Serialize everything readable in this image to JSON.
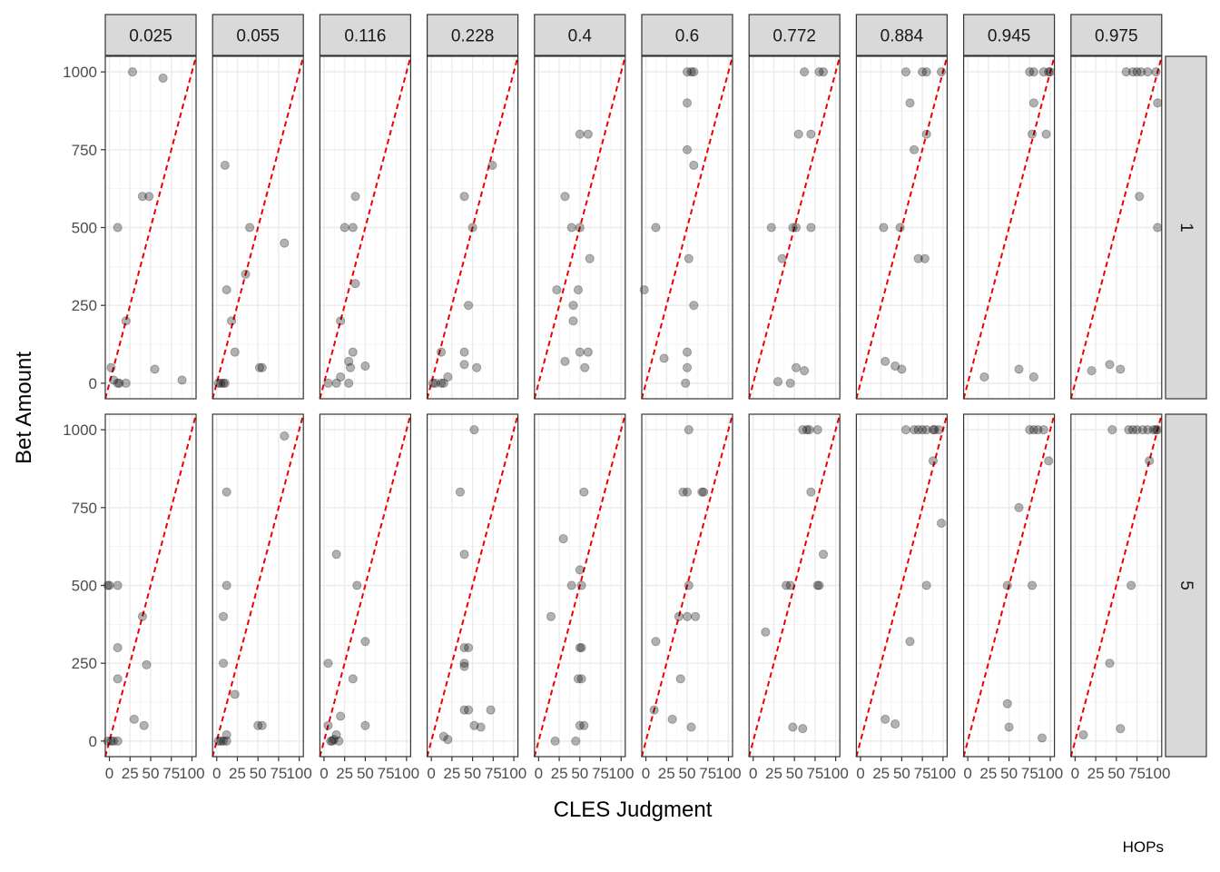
{
  "chart_data": {
    "type": "scatter",
    "xlabel": "CLES Judgment",
    "ylabel": "Bet Amount",
    "caption": "HOPs",
    "xlim": [
      -5,
      105
    ],
    "ylim": [
      -50,
      1050
    ],
    "x_ticks": [
      0,
      25,
      50,
      75,
      100
    ],
    "x_tick_labels": [
      "0",
      "25",
      "50",
      "75",
      "100"
    ],
    "y_ticks": [
      0,
      250,
      500,
      750,
      1000
    ],
    "y_tick_labels": [
      "0",
      "250",
      "500",
      "750",
      "1000"
    ],
    "col_labels": [
      "0.025",
      "0.055",
      "0.116",
      "0.228",
      "0.4",
      "0.6",
      "0.772",
      "0.884",
      "0.945",
      "0.975"
    ],
    "row_labels": [
      "1",
      "5"
    ],
    "reference_line": {
      "style": "dashed",
      "color": "#ee0000",
      "slope": 10,
      "intercept": 0
    },
    "point_color": "#000000",
    "point_opacity": 0.3,
    "grid": true,
    "panels": [
      {
        "row": "1",
        "col": "0.025",
        "points": [
          [
            28,
            1000
          ],
          [
            65,
            980
          ],
          [
            40,
            600
          ],
          [
            48,
            600
          ],
          [
            10,
            500
          ],
          [
            20,
            200
          ],
          [
            55,
            45
          ],
          [
            2,
            50
          ],
          [
            5,
            10
          ],
          [
            10,
            0
          ],
          [
            12,
            0
          ],
          [
            20,
            0
          ],
          [
            88,
            10
          ]
        ]
      },
      {
        "row": "1",
        "col": "0.055",
        "points": [
          [
            10,
            700
          ],
          [
            40,
            500
          ],
          [
            35,
            350
          ],
          [
            82,
            450
          ],
          [
            12,
            300
          ],
          [
            18,
            200
          ],
          [
            22,
            100
          ],
          [
            52,
            50
          ],
          [
            55,
            50
          ],
          [
            2,
            0
          ],
          [
            5,
            0
          ],
          [
            8,
            0
          ],
          [
            10,
            0
          ]
        ]
      },
      {
        "row": "1",
        "col": "0.116",
        "points": [
          [
            38,
            600
          ],
          [
            25,
            500
          ],
          [
            35,
            500
          ],
          [
            38,
            320
          ],
          [
            20,
            200
          ],
          [
            35,
            100
          ],
          [
            30,
            70
          ],
          [
            32,
            50
          ],
          [
            50,
            55
          ],
          [
            5,
            0
          ],
          [
            15,
            0
          ],
          [
            20,
            20
          ],
          [
            30,
            0
          ]
        ]
      },
      {
        "row": "1",
        "col": "0.228",
        "points": [
          [
            74,
            700
          ],
          [
            40,
            600
          ],
          [
            50,
            500
          ],
          [
            45,
            250
          ],
          [
            12,
            100
          ],
          [
            40,
            100
          ],
          [
            40,
            60
          ],
          [
            55,
            50
          ],
          [
            20,
            20
          ],
          [
            2,
            0
          ],
          [
            5,
            0
          ],
          [
            12,
            0
          ],
          [
            15,
            0
          ]
        ]
      },
      {
        "row": "1",
        "col": "0.4",
        "points": [
          [
            50,
            800
          ],
          [
            60,
            800
          ],
          [
            32,
            600
          ],
          [
            40,
            500
          ],
          [
            50,
            500
          ],
          [
            62,
            400
          ],
          [
            22,
            300
          ],
          [
            48,
            300
          ],
          [
            42,
            250
          ],
          [
            42,
            200
          ],
          [
            50,
            100
          ],
          [
            60,
            100
          ],
          [
            32,
            70
          ],
          [
            56,
            50
          ]
        ]
      },
      {
        "row": "1",
        "col": "0.6",
        "points": [
          [
            50,
            1000
          ],
          [
            55,
            1000
          ],
          [
            58,
            1000
          ],
          [
            50,
            900
          ],
          [
            50,
            750
          ],
          [
            58,
            700
          ],
          [
            12,
            500
          ],
          [
            52,
            400
          ],
          [
            -2,
            300
          ],
          [
            58,
            250
          ],
          [
            22,
            80
          ],
          [
            50,
            100
          ],
          [
            50,
            50
          ],
          [
            48,
            0
          ]
        ]
      },
      {
        "row": "1",
        "col": "0.772",
        "points": [
          [
            62,
            1000
          ],
          [
            80,
            1000
          ],
          [
            85,
            1000
          ],
          [
            55,
            800
          ],
          [
            70,
            800
          ],
          [
            22,
            500
          ],
          [
            48,
            500
          ],
          [
            52,
            500
          ],
          [
            70,
            500
          ],
          [
            35,
            400
          ],
          [
            52,
            50
          ],
          [
            62,
            40
          ],
          [
            30,
            5
          ],
          [
            45,
            0
          ]
        ]
      },
      {
        "row": "1",
        "col": "0.884",
        "points": [
          [
            55,
            1000
          ],
          [
            75,
            1000
          ],
          [
            80,
            1000
          ],
          [
            98,
            1000
          ],
          [
            60,
            900
          ],
          [
            80,
            800
          ],
          [
            65,
            750
          ],
          [
            28,
            500
          ],
          [
            48,
            500
          ],
          [
            70,
            400
          ],
          [
            78,
            400
          ],
          [
            30,
            70
          ],
          [
            42,
            55
          ],
          [
            50,
            45
          ]
        ]
      },
      {
        "row": "1",
        "col": "0.945",
        "points": [
          [
            75,
            1000
          ],
          [
            80,
            1000
          ],
          [
            92,
            1000
          ],
          [
            98,
            1000
          ],
          [
            100,
            1000
          ],
          [
            80,
            900
          ],
          [
            78,
            800
          ],
          [
            95,
            800
          ],
          [
            20,
            20
          ],
          [
            62,
            45
          ],
          [
            80,
            20
          ]
        ]
      },
      {
        "row": "1",
        "col": "0.975",
        "points": [
          [
            62,
            1000
          ],
          [
            70,
            1000
          ],
          [
            75,
            1000
          ],
          [
            80,
            1000
          ],
          [
            88,
            1000
          ],
          [
            98,
            1000
          ],
          [
            100,
            900
          ],
          [
            78,
            600
          ],
          [
            100,
            500
          ],
          [
            20,
            40
          ],
          [
            42,
            60
          ],
          [
            55,
            45
          ]
        ]
      },
      {
        "row": "5",
        "col": "0.025",
        "points": [
          [
            -2,
            500
          ],
          [
            0,
            500
          ],
          [
            10,
            500
          ],
          [
            40,
            400
          ],
          [
            10,
            300
          ],
          [
            10,
            200
          ],
          [
            45,
            245
          ],
          [
            30,
            70
          ],
          [
            42,
            50
          ],
          [
            -2,
            0
          ],
          [
            2,
            0
          ],
          [
            5,
            0
          ],
          [
            10,
            0
          ]
        ]
      },
      {
        "row": "5",
        "col": "0.055",
        "points": [
          [
            82,
            980
          ],
          [
            12,
            800
          ],
          [
            12,
            500
          ],
          [
            8,
            400
          ],
          [
            8,
            250
          ],
          [
            22,
            150
          ],
          [
            50,
            50
          ],
          [
            55,
            50
          ],
          [
            2,
            0
          ],
          [
            5,
            0
          ],
          [
            8,
            0
          ],
          [
            12,
            20
          ],
          [
            12,
            0
          ]
        ]
      },
      {
        "row": "5",
        "col": "0.116",
        "points": [
          [
            15,
            600
          ],
          [
            40,
            500
          ],
          [
            50,
            320
          ],
          [
            35,
            200
          ],
          [
            5,
            250
          ],
          [
            20,
            80
          ],
          [
            50,
            50
          ],
          [
            5,
            50
          ],
          [
            10,
            0
          ],
          [
            12,
            5
          ],
          [
            15,
            20
          ],
          [
            18,
            0
          ],
          [
            8,
            0
          ]
        ]
      },
      {
        "row": "5",
        "col": "0.228",
        "points": [
          [
            52,
            1000
          ],
          [
            35,
            800
          ],
          [
            40,
            600
          ],
          [
            40,
            300
          ],
          [
            45,
            300
          ],
          [
            40,
            250
          ],
          [
            40,
            240
          ],
          [
            40,
            100
          ],
          [
            45,
            100
          ],
          [
            72,
            100
          ],
          [
            52,
            50
          ],
          [
            60,
            45
          ],
          [
            15,
            15
          ],
          [
            20,
            5
          ]
        ]
      },
      {
        "row": "5",
        "col": "0.4",
        "points": [
          [
            55,
            800
          ],
          [
            30,
            650
          ],
          [
            50,
            550
          ],
          [
            40,
            500
          ],
          [
            52,
            500
          ],
          [
            15,
            400
          ],
          [
            50,
            300
          ],
          [
            52,
            300
          ],
          [
            48,
            200
          ],
          [
            52,
            200
          ],
          [
            20,
            0
          ],
          [
            45,
            0
          ],
          [
            50,
            50
          ],
          [
            55,
            50
          ]
        ]
      },
      {
        "row": "5",
        "col": "0.6",
        "points": [
          [
            52,
            1000
          ],
          [
            45,
            800
          ],
          [
            50,
            800
          ],
          [
            68,
            800
          ],
          [
            70,
            800
          ],
          [
            52,
            500
          ],
          [
            40,
            400
          ],
          [
            50,
            400
          ],
          [
            60,
            400
          ],
          [
            12,
            320
          ],
          [
            42,
            200
          ],
          [
            10,
            100
          ],
          [
            32,
            70
          ],
          [
            55,
            45
          ]
        ]
      },
      {
        "row": "5",
        "col": "0.772",
        "points": [
          [
            60,
            1000
          ],
          [
            65,
            1000
          ],
          [
            68,
            1000
          ],
          [
            78,
            1000
          ],
          [
            70,
            800
          ],
          [
            85,
            600
          ],
          [
            40,
            500
          ],
          [
            45,
            500
          ],
          [
            80,
            500
          ],
          [
            78,
            500
          ],
          [
            15,
            350
          ],
          [
            48,
            45
          ],
          [
            60,
            40
          ]
        ]
      },
      {
        "row": "5",
        "col": "0.884",
        "points": [
          [
            55,
            1000
          ],
          [
            65,
            1000
          ],
          [
            70,
            1000
          ],
          [
            75,
            1000
          ],
          [
            80,
            1000
          ],
          [
            88,
            1000
          ],
          [
            90,
            1000
          ],
          [
            95,
            1000
          ],
          [
            88,
            900
          ],
          [
            98,
            700
          ],
          [
            80,
            500
          ],
          [
            60,
            320
          ],
          [
            30,
            70
          ],
          [
            42,
            55
          ]
        ]
      },
      {
        "row": "5",
        "col": "0.945",
        "points": [
          [
            75,
            1000
          ],
          [
            80,
            1000
          ],
          [
            85,
            1000
          ],
          [
            92,
            1000
          ],
          [
            98,
            900
          ],
          [
            62,
            750
          ],
          [
            48,
            500
          ],
          [
            78,
            500
          ],
          [
            48,
            120
          ],
          [
            50,
            45
          ],
          [
            90,
            10
          ]
        ]
      },
      {
        "row": "5",
        "col": "0.975",
        "points": [
          [
            45,
            1000
          ],
          [
            65,
            1000
          ],
          [
            70,
            1000
          ],
          [
            75,
            1000
          ],
          [
            82,
            1000
          ],
          [
            88,
            1000
          ],
          [
            95,
            1000
          ],
          [
            98,
            1000
          ],
          [
            100,
            1000
          ],
          [
            90,
            900
          ],
          [
            68,
            500
          ],
          [
            42,
            250
          ],
          [
            55,
            40
          ],
          [
            10,
            20
          ]
        ]
      }
    ]
  }
}
